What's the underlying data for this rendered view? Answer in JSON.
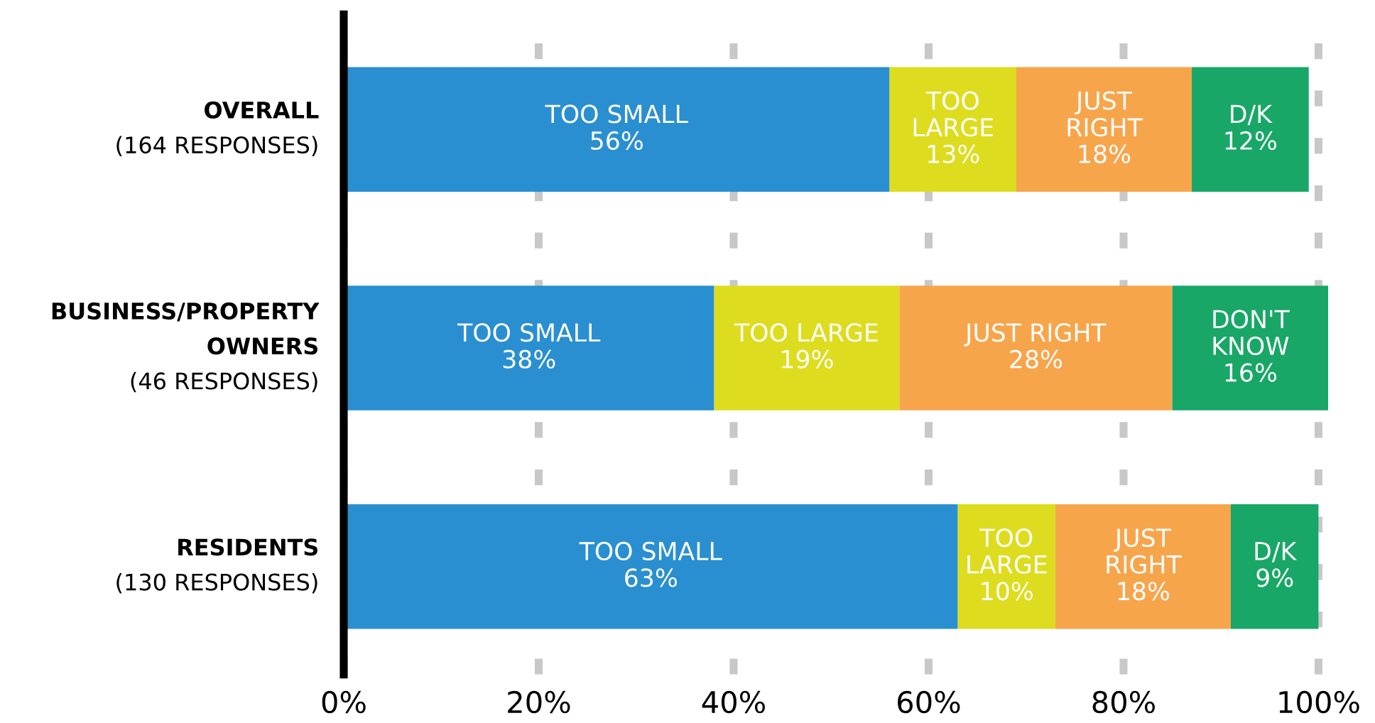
{
  "chart_data": {
    "type": "bar",
    "orientation": "horizontal",
    "stacked": true,
    "categories": [
      "OVERALL\n(164 RESPONSES)",
      "BUSINESS/PROPERTY\nOWNERS\n(46 RESPONSES)",
      "RESIDENTS\n(130 RESPONSES)"
    ],
    "series": [
      {
        "color": "#2a8fd0",
        "values": [
          56,
          38,
          63
        ],
        "value_labels": [
          "TOO SMALL\n56%",
          "TOO SMALL\n38%",
          "TOO SMALL\n63%"
        ]
      },
      {
        "color": "#dedc1e",
        "values": [
          13,
          19,
          10
        ],
        "value_labels": [
          "TOO\nLARGE\n13%",
          "TOO LARGE\n19%",
          "TOO\nLARGE\n10%"
        ]
      },
      {
        "color": "#f7a54b",
        "values": [
          18,
          28,
          18
        ],
        "value_labels": [
          "JUST\nRIGHT\n18%",
          "JUST RIGHT\n28%",
          "JUST\nRIGHT\n18%"
        ]
      },
      {
        "color": "#18a766",
        "values": [
          12,
          16,
          9
        ],
        "value_labels": [
          "D/K\n12%",
          "DON'T\nKNOW\n16%",
          "D/K\n9%"
        ]
      }
    ],
    "xlim": [
      0,
      101
    ],
    "xticks": [
      {
        "value": 0,
        "label": "0%"
      },
      {
        "value": 20,
        "label": "20%"
      },
      {
        "value": 40,
        "label": "40%"
      },
      {
        "value": 60,
        "label": "60%"
      },
      {
        "value": 80,
        "label": "80%"
      },
      {
        "value": 100,
        "label": "100%"
      }
    ],
    "grid": "x"
  }
}
